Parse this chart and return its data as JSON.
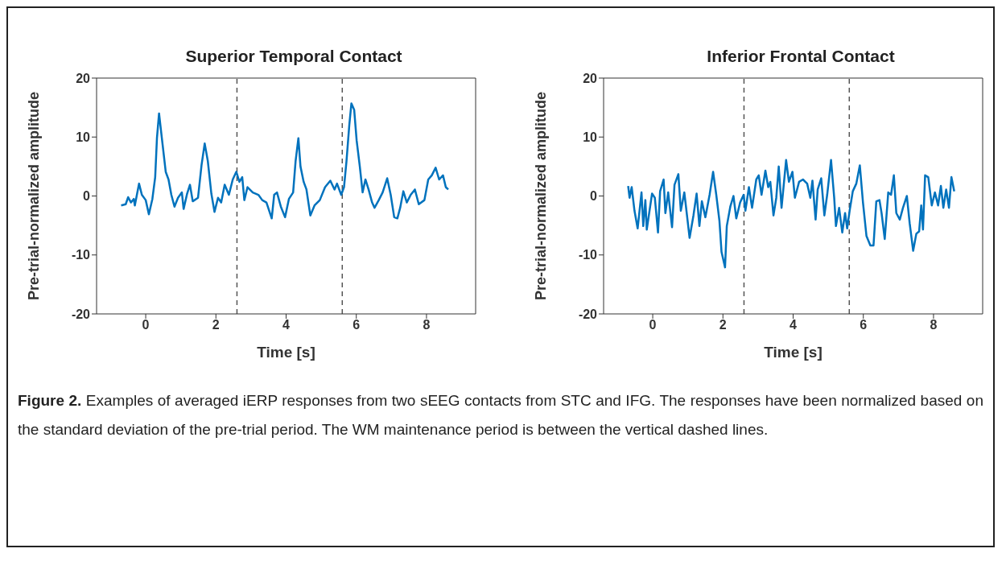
{
  "chart_data": [
    {
      "type": "line",
      "title": "Superior Temporal Contact",
      "xlabel": "Time [s]",
      "ylabel": "Pre-trial-normalized amplitude",
      "xlim": [
        -1.4,
        9.4
      ],
      "xticks": [
        0,
        2,
        4,
        6,
        8
      ],
      "ylim": [
        -20,
        20
      ],
      "yticks": [
        -20,
        -10,
        0,
        10,
        20
      ],
      "grid": false,
      "legend": false,
      "ref_lines": [
        {
          "axis": "x",
          "value": 2.6,
          "color": "#555555",
          "line_style": "dashed"
        },
        {
          "axis": "x",
          "value": 5.6,
          "color": "#555555",
          "line_style": "dashed"
        }
      ],
      "annotations": [
        "Figure 2. Examples of averaged iERP responses from two sEEG contacts from STC and IFG. The responses have been normalized based on the standard deviation of the pre-trial period. The WM maintenance period is between the vertical dashed lines."
      ],
      "series": [
        {
          "color": "#0072bd",
          "x": [
            -0.7,
            -0.57,
            -0.5,
            -0.42,
            -0.34,
            -0.31,
            -0.19,
            -0.11,
            0,
            0.09,
            0.19,
            0.27,
            0.32,
            0.38,
            0.46,
            0.57,
            0.65,
            0.73,
            0.82,
            0.92,
            1.03,
            1.08,
            1.18,
            1.26,
            1.34,
            1.49,
            1.59,
            1.68,
            1.77,
            1.87,
            1.96,
            2.06,
            2.15,
            2.25,
            2.37,
            2.48,
            2.58,
            2.67,
            2.75,
            2.81,
            2.9,
            3.05,
            3.21,
            3.32,
            3.44,
            3.59,
            3.66,
            3.74,
            3.85,
            3.97,
            4.08,
            4.2,
            4.27,
            4.35,
            4.41,
            4.5,
            4.58,
            4.69,
            4.81,
            4.96,
            5.11,
            5.26,
            5.38,
            5.45,
            5.57,
            5.65,
            5.72,
            5.8,
            5.86,
            5.94,
            6.01,
            6.1,
            6.18,
            6.26,
            6.35,
            6.45,
            6.52,
            6.64,
            6.75,
            6.88,
            6.98,
            7.08,
            7.17,
            7.25,
            7.34,
            7.44,
            7.55,
            7.67,
            7.78,
            7.94,
            8.05,
            8.15,
            8.26,
            8.36,
            8.47,
            8.55,
            8.62
          ],
          "values": [
            -1.6,
            -1.4,
            -0.2,
            -1.1,
            -0.5,
            -1.6,
            2.1,
            0.2,
            -0.7,
            -3.1,
            -0.5,
            3.2,
            9.8,
            14.0,
            9.8,
            4.1,
            2.8,
            0.2,
            -1.8,
            -0.3,
            0.6,
            -2.2,
            0.4,
            1.9,
            -0.9,
            -0.3,
            5.2,
            8.9,
            5.9,
            0.4,
            -2.7,
            -0.3,
            -1.1,
            1.9,
            0.2,
            2.8,
            4.1,
            2.4,
            3.2,
            -0.7,
            1.5,
            0.6,
            0.2,
            -0.7,
            -1.1,
            -3.8,
            0.2,
            0.6,
            -1.8,
            -3.6,
            -0.5,
            0.6,
            5.9,
            9.8,
            5.0,
            2.4,
            1.1,
            -3.3,
            -1.6,
            -0.7,
            1.5,
            2.6,
            1.1,
            2.1,
            0.2,
            1.5,
            5.9,
            12.0,
            15.7,
            14.6,
            9.4,
            5.0,
            0.6,
            2.8,
            1.1,
            -1.1,
            -2.0,
            -0.7,
            0.6,
            3.0,
            0.2,
            -3.6,
            -3.8,
            -2.0,
            0.8,
            -1.1,
            0.2,
            1.1,
            -1.4,
            -0.7,
            2.8,
            3.5,
            4.8,
            2.8,
            3.5,
            1.5,
            1.1
          ]
        }
      ]
    },
    {
      "type": "line",
      "title": "Inferior Frontal Contact",
      "xlabel": "Time [s]",
      "ylabel": "Pre-trial-normalized amplitude",
      "xlim": [
        -1.4,
        9.4
      ],
      "xticks": [
        0,
        2,
        4,
        6,
        8
      ],
      "ylim": [
        -20,
        20
      ],
      "yticks": [
        -20,
        -10,
        0,
        10,
        20
      ],
      "grid": false,
      "legend": false,
      "ref_lines": [
        {
          "axis": "x",
          "value": 2.6,
          "color": "#555555",
          "line_style": "dashed"
        },
        {
          "axis": "x",
          "value": 5.6,
          "color": "#555555",
          "line_style": "dashed"
        }
      ],
      "series": [
        {
          "color": "#0072bd",
          "x": [
            -0.7,
            -0.66,
            -0.6,
            -0.52,
            -0.43,
            -0.32,
            -0.27,
            -0.21,
            -0.17,
            -0.02,
            0.06,
            0.15,
            0.21,
            0.31,
            0.36,
            0.44,
            0.55,
            0.62,
            0.73,
            0.8,
            0.9,
            1.05,
            1.16,
            1.25,
            1.33,
            1.4,
            1.5,
            1.62,
            1.72,
            1.81,
            1.9,
            1.96,
            2.06,
            2.11,
            2.21,
            2.3,
            2.38,
            2.49,
            2.59,
            2.64,
            2.74,
            2.83,
            2.95,
            3.02,
            3.1,
            3.21,
            3.29,
            3.35,
            3.44,
            3.52,
            3.59,
            3.67,
            3.8,
            3.88,
            3.98,
            4.05,
            4.17,
            4.28,
            4.4,
            4.49,
            4.55,
            4.64,
            4.7,
            4.8,
            4.89,
            4.97,
            5.08,
            5.17,
            5.22,
            5.31,
            5.4,
            5.48,
            5.54,
            5.61,
            5.7,
            5.8,
            5.9,
            5.99,
            6.09,
            6.2,
            6.29,
            6.37,
            6.46,
            6.52,
            6.61,
            6.71,
            6.79,
            6.87,
            6.94,
            7.04,
            7.13,
            7.24,
            7.32,
            7.42,
            7.51,
            7.59,
            7.65,
            7.7,
            7.76,
            7.85,
            7.95,
            8.04,
            8.13,
            8.21,
            8.28,
            8.36,
            8.44,
            8.51,
            8.59
          ],
          "values": [
            1.7,
            -0.3,
            1.5,
            -2.5,
            -5.5,
            0.6,
            -5.1,
            -0.7,
            -5.7,
            0.4,
            -0.3,
            -6.2,
            0.8,
            2.8,
            -2.9,
            0.6,
            -5.3,
            1.9,
            3.7,
            -2.5,
            0.6,
            -7.1,
            -3.3,
            0.4,
            -5.1,
            -0.9,
            -3.6,
            0.2,
            4.1,
            0.2,
            -4.2,
            -9.5,
            -12.1,
            -5.1,
            -1.8,
            0,
            -3.8,
            -1.1,
            0.2,
            -2.5,
            1.5,
            -2.0,
            2.8,
            3.5,
            0.2,
            4.3,
            1.5,
            2.4,
            -3.3,
            -0.3,
            5.0,
            -2.0,
            6.1,
            2.4,
            4.1,
            -0.3,
            2.4,
            2.8,
            2.1,
            -0.3,
            2.6,
            -4.0,
            1.1,
            3.0,
            -3.3,
            0.2,
            6.1,
            -0.3,
            -5.1,
            -2.0,
            -6.2,
            -2.9,
            -5.5,
            -2.5,
            0.8,
            2.1,
            5.2,
            -1.1,
            -6.8,
            -8.4,
            -8.4,
            -0.9,
            -0.7,
            -2.9,
            -7.3,
            0.6,
            0.2,
            3.5,
            -2.9,
            -4.0,
            -2.0,
            0,
            -4.6,
            -9.3,
            -6.4,
            -6.0,
            -1.6,
            -5.7,
            3.5,
            3.2,
            -1.6,
            0.6,
            -1.6,
            1.7,
            -2.0,
            1.1,
            -2.0,
            3.2,
            0.8
          ]
        }
      ]
    }
  ]
}
